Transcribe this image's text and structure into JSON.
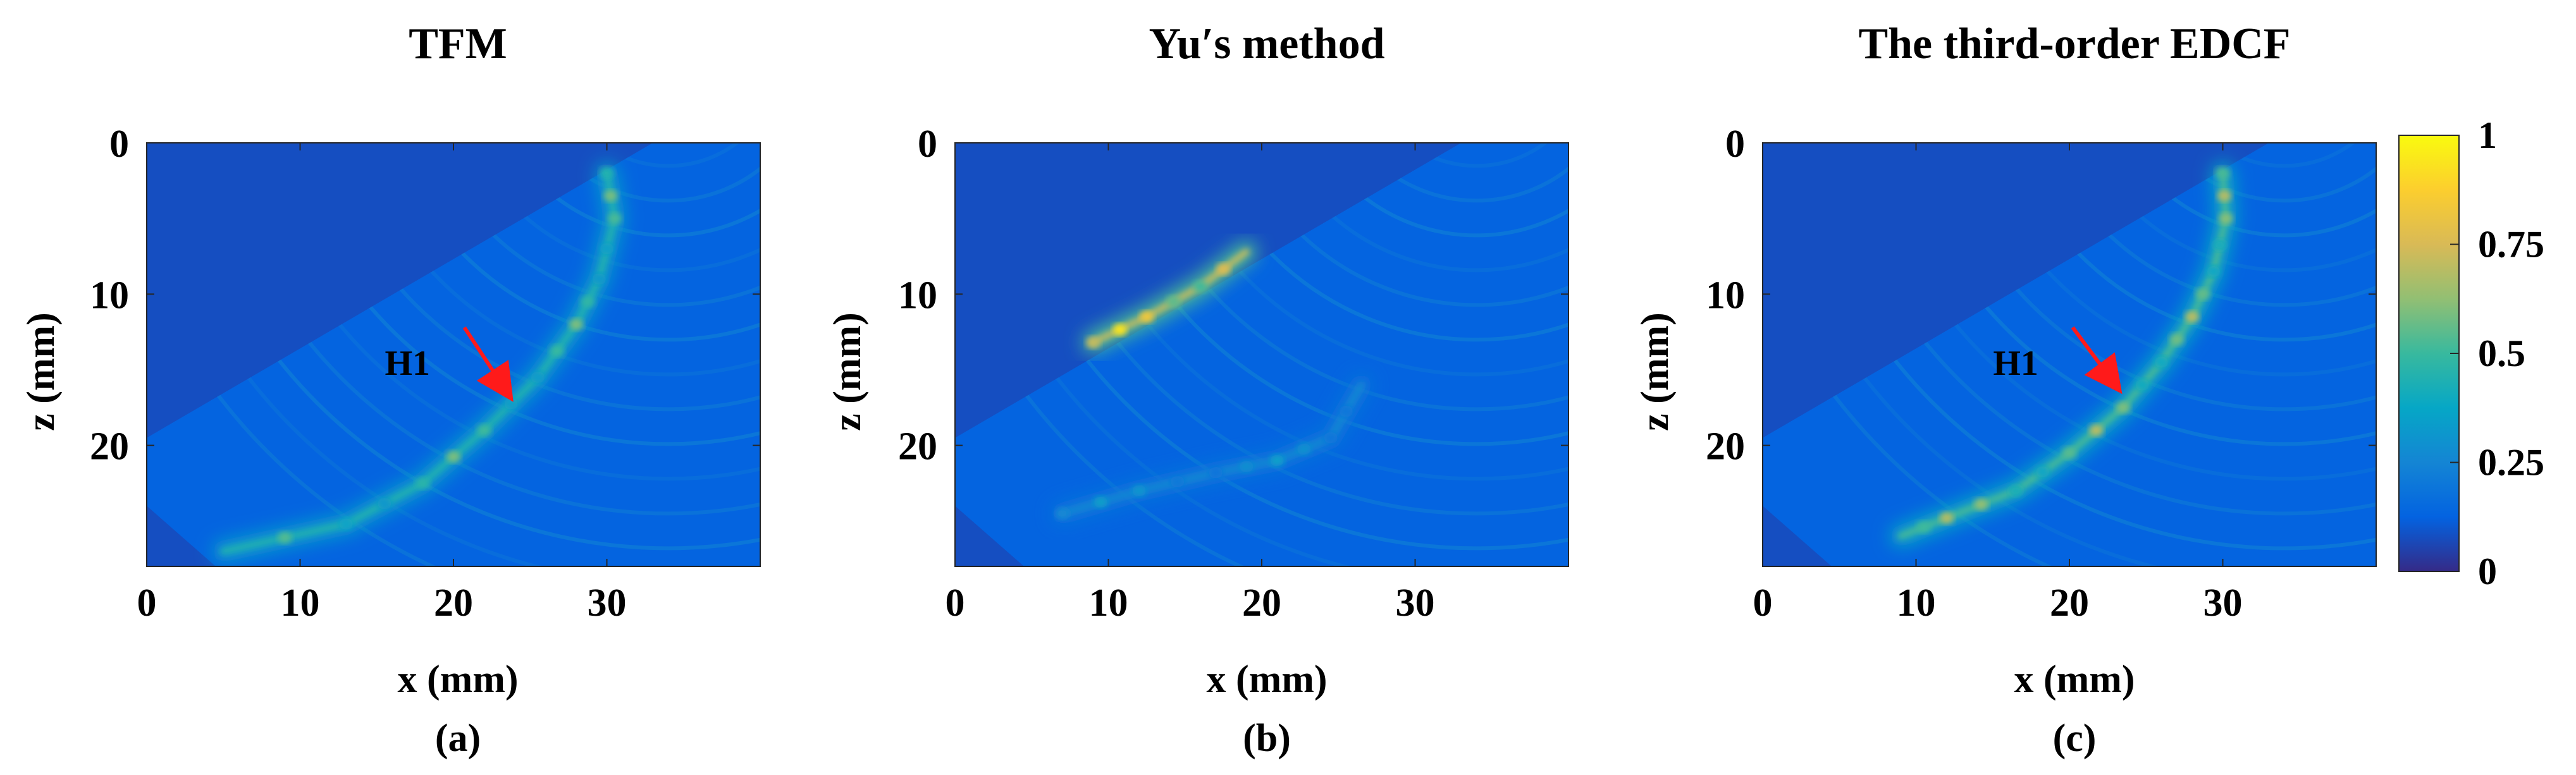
{
  "chart_data": [
    {
      "type": "heatmap",
      "panel_label": "(a)",
      "title": "TFM",
      "xlabel": "x (mm)",
      "ylabel": "z (mm)",
      "xlim": [
        0,
        40
      ],
      "ylim": [
        28,
        0
      ],
      "xticks": [
        0,
        10,
        20,
        30
      ],
      "yticks": [
        0,
        10,
        20
      ],
      "background_value": 0.08,
      "insonified_region_boundary": [
        [
          0,
          19.5
        ],
        [
          33,
          0
        ],
        [
          40,
          0
        ],
        [
          40,
          28
        ],
        [
          4.5,
          28
        ],
        [
          0,
          24
        ]
      ],
      "features": [
        {
          "name": "crack indication",
          "points": [
            [
              30,
              2
            ],
            [
              30.5,
              5
            ],
            [
              29.5,
              9
            ],
            [
              28,
              12
            ],
            [
              25.5,
              15.5
            ],
            [
              22,
              19
            ],
            [
              18,
              22.5
            ],
            [
              13,
              25.2
            ],
            [
              5,
              27
            ]
          ],
          "peak_value": 0.6
        }
      ],
      "annotations": [
        {
          "text": "H1",
          "x": 17,
          "y": 14.5,
          "arrow_to": [
            23.5,
            16.5
          ],
          "arrow_color": "#ff1a1a"
        }
      ]
    },
    {
      "type": "heatmap",
      "panel_label": "(b)",
      "title": "Yu′s method",
      "xlabel": "x (mm)",
      "ylabel": "z (mm)",
      "xlim": [
        0,
        40
      ],
      "ylim": [
        28,
        0
      ],
      "xticks": [
        0,
        10,
        20,
        30
      ],
      "yticks": [
        0,
        10,
        20
      ],
      "background_value": 0.08,
      "insonified_region_boundary": [
        [
          0,
          19.5
        ],
        [
          33,
          0
        ],
        [
          40,
          0
        ],
        [
          40,
          28
        ],
        [
          4.5,
          28
        ],
        [
          0,
          24
        ]
      ],
      "features": [
        {
          "name": "bright edge",
          "points": [
            [
              9,
              13.2
            ],
            [
              12.5,
              11.5
            ],
            [
              16,
              9.5
            ],
            [
              19,
              7.2
            ]
          ],
          "peak_value": 0.95
        },
        {
          "name": "lower arc",
          "points": [
            [
              7,
              24.5
            ],
            [
              12,
              23
            ],
            [
              17,
              21.8
            ],
            [
              21,
              21
            ],
            [
              24.5,
              19.5
            ],
            [
              26.5,
              16
            ]
          ],
          "peak_value": 0.35
        }
      ],
      "annotations": []
    },
    {
      "type": "heatmap",
      "panel_label": "(c)",
      "title": "The third-order EDCF",
      "xlabel": "x (mm)",
      "ylabel": "z (mm)",
      "xlim": [
        0,
        40
      ],
      "ylim": [
        28,
        0
      ],
      "xticks": [
        0,
        10,
        20,
        30
      ],
      "yticks": [
        0,
        10,
        20
      ],
      "background_value": 0.08,
      "insonified_region_boundary": [
        [
          0,
          19.5
        ],
        [
          33,
          0
        ],
        [
          40,
          0
        ],
        [
          40,
          28
        ],
        [
          4.5,
          28
        ],
        [
          0,
          24
        ]
      ],
      "features": [
        {
          "name": "crack indication",
          "points": [
            [
              30,
              2
            ],
            [
              30.2,
              5
            ],
            [
              29.4,
              8.5
            ],
            [
              28,
              11.5
            ],
            [
              26,
              14.5
            ],
            [
              23.5,
              17.5
            ],
            [
              20,
              20.5
            ],
            [
              16.5,
              23
            ],
            [
              12,
              24.8
            ],
            [
              9,
              26
            ]
          ],
          "peak_value": 0.7
        }
      ],
      "annotations": [
        {
          "text": "H1",
          "x": 16.5,
          "y": 14.5,
          "arrow_to": [
            23,
            16
          ],
          "arrow_color": "#ff1a1a"
        }
      ]
    }
  ],
  "colorbar": {
    "colormap": "parula",
    "ticks": [
      {
        "value": 0,
        "label": "0"
      },
      {
        "value": 0.25,
        "label": "0.25"
      },
      {
        "value": 0.5,
        "label": "0.5"
      },
      {
        "value": 0.75,
        "label": "0.75"
      },
      {
        "value": 1,
        "label": "1"
      }
    ],
    "stops": [
      "#352a87",
      "#0363e1",
      "#1485d4",
      "#06a7c6",
      "#38b99e",
      "#92bf73",
      "#d9ba56",
      "#fcce2e",
      "#f9fb0e"
    ]
  }
}
